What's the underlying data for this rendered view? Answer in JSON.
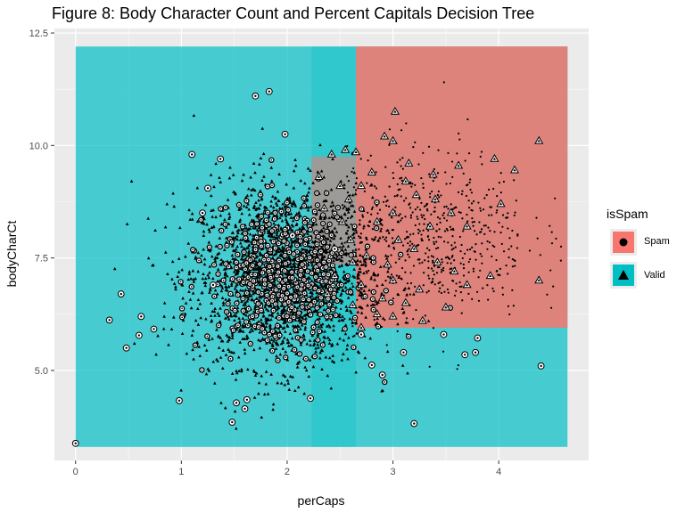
{
  "chart_data": {
    "type": "scatter",
    "title": "Figure 8: Body Character Count and Percent Capitals Decision Tree",
    "xlabel": "perCaps",
    "ylabel": "bodyCharCt",
    "xlim": [
      -0.2,
      4.85
    ],
    "ylim": [
      3.0,
      12.6
    ],
    "x_ticks": [
      0,
      1,
      2,
      3,
      4
    ],
    "x_tick_labels": [
      "0",
      "1",
      "2",
      "3",
      "4"
    ],
    "y_ticks": [
      5.0,
      7.5,
      10.0,
      12.5
    ],
    "y_tick_labels": [
      "5.0",
      "7.5",
      "10.0",
      "12.5"
    ],
    "grid": true,
    "legend_position": "right",
    "legend": {
      "title": "isSpam",
      "entries": [
        {
          "label": "Spam",
          "shape": "circle",
          "color": "#f8766d"
        },
        {
          "label": "Valid",
          "shape": "triangle",
          "color": "#00bfc4"
        }
      ]
    },
    "regions": [
      {
        "class": "Valid",
        "x": [
          0.0,
          4.65
        ],
        "y": [
          3.3,
          12.2
        ],
        "color": "#00bfc4",
        "alpha": 0.7
      },
      {
        "class": "Valid",
        "x": [
          2.23,
          2.65
        ],
        "y": [
          3.3,
          12.2
        ],
        "color": "#00bfc4",
        "alpha": 0.3
      },
      {
        "class": "Spam",
        "x": [
          2.65,
          4.65
        ],
        "y": [
          5.95,
          12.2
        ],
        "color": "#f8766d",
        "alpha": 0.85
      },
      {
        "class": "Spam",
        "x": [
          2.23,
          2.65
        ],
        "y": [
          7.35,
          9.75
        ],
        "color": "#f8766d",
        "alpha": 0.55
      }
    ],
    "series": [
      {
        "name": "Spam",
        "marker": "circle",
        "points": [
          [
            0.0,
            3.38
          ],
          [
            0.32,
            6.12
          ],
          [
            0.43,
            6.7
          ],
          [
            0.48,
            5.5
          ],
          [
            0.6,
            5.78
          ],
          [
            0.62,
            6.2
          ],
          [
            0.74,
            5.92
          ],
          [
            0.98,
            4.33
          ],
          [
            1.1,
            9.8
          ],
          [
            1.25,
            9.05
          ],
          [
            1.37,
            9.7
          ],
          [
            1.48,
            3.85
          ],
          [
            1.52,
            4.28
          ],
          [
            1.6,
            4.15
          ],
          [
            1.62,
            4.35
          ],
          [
            1.7,
            11.1
          ],
          [
            1.83,
            11.2
          ],
          [
            1.98,
            10.25
          ],
          [
            2.22,
            4.38
          ],
          [
            2.7,
            5.8
          ],
          [
            2.8,
            5.12
          ],
          [
            3.2,
            3.82
          ],
          [
            3.68,
            5.35
          ],
          [
            3.78,
            5.4
          ],
          [
            3.8,
            5.72
          ],
          [
            4.4,
            5.1
          ],
          [
            2.05,
            8.0
          ],
          [
            2.45,
            7.7
          ],
          [
            1.2,
            8.5
          ],
          [
            1.3,
            6.9
          ],
          [
            3.1,
            5.4
          ],
          [
            2.9,
            4.9
          ],
          [
            3.48,
            5.8
          ]
        ]
      },
      {
        "name": "Valid",
        "marker": "triangle",
        "points": [
          [
            3.02,
            10.75
          ],
          [
            2.92,
            10.2
          ],
          [
            3.0,
            10.1
          ],
          [
            2.55,
            9.9
          ],
          [
            2.65,
            9.85
          ],
          [
            3.38,
            9.35
          ],
          [
            3.62,
            9.55
          ],
          [
            3.96,
            9.7
          ],
          [
            4.15,
            9.45
          ],
          [
            4.38,
            10.1
          ],
          [
            2.7,
            9.1
          ],
          [
            2.8,
            9.4
          ],
          [
            3.12,
            9.2
          ],
          [
            3.22,
            8.9
          ],
          [
            3.4,
            8.8
          ],
          [
            3.55,
            8.5
          ],
          [
            3.7,
            8.2
          ],
          [
            4.02,
            8.7
          ],
          [
            3.0,
            8.5
          ],
          [
            2.85,
            8.3
          ],
          [
            3.05,
            7.9
          ],
          [
            3.2,
            7.7
          ],
          [
            3.42,
            7.4
          ],
          [
            3.58,
            7.2
          ],
          [
            3.7,
            6.9
          ],
          [
            3.92,
            7.1
          ],
          [
            4.38,
            7.0
          ],
          [
            3.0,
            7.0
          ],
          [
            3.25,
            6.8
          ],
          [
            2.9,
            6.6
          ],
          [
            3.12,
            6.5
          ],
          [
            2.85,
            6.25
          ],
          [
            3.0,
            6.2
          ],
          [
            2.7,
            6.9
          ],
          [
            2.62,
            6.45
          ],
          [
            2.7,
            5.95
          ],
          [
            2.58,
            8.8
          ],
          [
            2.5,
            9.1
          ],
          [
            2.42,
            9.8
          ],
          [
            2.3,
            9.3
          ],
          [
            2.35,
            8.6
          ],
          [
            2.52,
            8.3
          ],
          [
            2.6,
            7.9
          ],
          [
            2.45,
            7.1
          ],
          [
            2.38,
            6.7
          ],
          [
            2.62,
            7.4
          ],
          [
            3.5,
            6.4
          ],
          [
            3.28,
            6.1
          ],
          [
            3.15,
            9.6
          ],
          [
            2.75,
            7.55
          ],
          [
            2.95,
            7.35
          ],
          [
            3.35,
            8.2
          ]
        ]
      }
    ]
  }
}
